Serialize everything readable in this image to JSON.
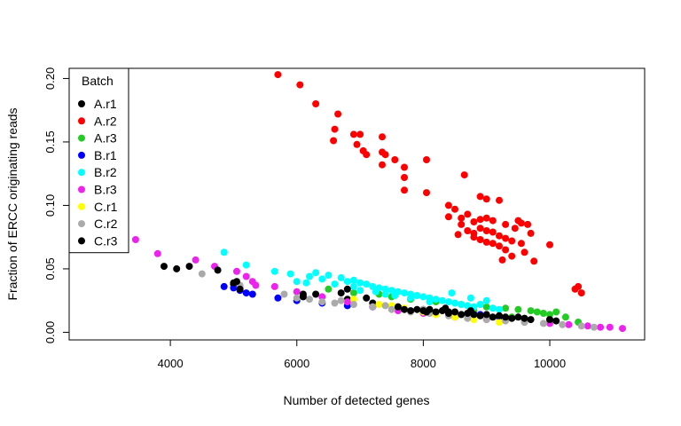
{
  "chart_data": {
    "type": "scatter",
    "xlabel": "Number of detected genes",
    "ylabel": "Fraction of ERCC originating reads",
    "xlim": [
      2400,
      11500
    ],
    "ylim": [
      -0.006,
      0.208
    ],
    "x_ticks": [
      4000,
      6000,
      8000,
      10000
    ],
    "y_ticks": [
      0.0,
      0.05,
      0.1,
      0.15,
      0.2
    ],
    "x_tick_labels": [
      "4000",
      "6000",
      "8000",
      "10000"
    ],
    "y_tick_labels": [
      "0.00",
      "0.05",
      "0.10",
      "0.15",
      "0.20"
    ],
    "grid": false,
    "legend": {
      "title": "Batch",
      "position": "top-left",
      "entries": [
        "A.r1",
        "A.r2",
        "A.r3",
        "B.r1",
        "B.r2",
        "B.r3",
        "C.r1",
        "C.r2",
        "C.r3"
      ]
    },
    "series": [
      {
        "name": "A.r1",
        "color": "#000000",
        "points": [
          [
            5000,
            0.038
          ],
          [
            5100,
            0.034
          ],
          [
            6300,
            0.03
          ],
          [
            6800,
            0.026
          ],
          [
            7200,
            0.023
          ],
          [
            7600,
            0.02
          ],
          [
            8000,
            0.018
          ],
          [
            8400,
            0.016
          ],
          [
            8800,
            0.014
          ],
          [
            9200,
            0.013
          ],
          [
            9600,
            0.011
          ],
          [
            10000,
            0.01
          ]
        ]
      },
      {
        "name": "A.r2",
        "color": "#ff0000",
        "points": [
          [
            5700,
            0.203
          ],
          [
            6050,
            0.195
          ],
          [
            6300,
            0.18
          ],
          [
            6650,
            0.172
          ],
          [
            6600,
            0.16
          ],
          [
            6580,
            0.151
          ],
          [
            6900,
            0.156
          ],
          [
            7000,
            0.156
          ],
          [
            6950,
            0.148
          ],
          [
            7050,
            0.143
          ],
          [
            7100,
            0.14
          ],
          [
            7350,
            0.154
          ],
          [
            7350,
            0.142
          ],
          [
            7400,
            0.14
          ],
          [
            7350,
            0.132
          ],
          [
            7550,
            0.136
          ],
          [
            7700,
            0.13
          ],
          [
            7700,
            0.122
          ],
          [
            7700,
            0.112
          ],
          [
            8050,
            0.136
          ],
          [
            8050,
            0.11
          ],
          [
            8650,
            0.124
          ],
          [
            8900,
            0.107
          ],
          [
            9000,
            0.105
          ],
          [
            9200,
            0.104
          ],
          [
            8400,
            0.1
          ],
          [
            8500,
            0.097
          ],
          [
            8400,
            0.091
          ],
          [
            8600,
            0.09
          ],
          [
            8700,
            0.093
          ],
          [
            8800,
            0.087
          ],
          [
            8900,
            0.089
          ],
          [
            9000,
            0.09
          ],
          [
            9100,
            0.088
          ],
          [
            9300,
            0.085
          ],
          [
            9500,
            0.088
          ],
          [
            9550,
            0.086
          ],
          [
            9650,
            0.085
          ],
          [
            9450,
            0.082
          ],
          [
            9700,
            0.078
          ],
          [
            8600,
            0.085
          ],
          [
            8700,
            0.08
          ],
          [
            8800,
            0.078
          ],
          [
            8900,
            0.082
          ],
          [
            9000,
            0.08
          ],
          [
            9100,
            0.079
          ],
          [
            9200,
            0.076
          ],
          [
            9300,
            0.074
          ],
          [
            9400,
            0.072
          ],
          [
            8800,
            0.075
          ],
          [
            8900,
            0.073
          ],
          [
            9000,
            0.071
          ],
          [
            9100,
            0.07
          ],
          [
            9200,
            0.068
          ],
          [
            9300,
            0.065
          ],
          [
            9400,
            0.06
          ],
          [
            9600,
            0.063
          ],
          [
            9550,
            0.07
          ],
          [
            8550,
            0.077
          ],
          [
            9250,
            0.057
          ],
          [
            9750,
            0.056
          ],
          [
            10000,
            0.069
          ],
          [
            10450,
            0.036
          ],
          [
            10500,
            0.031
          ],
          [
            10400,
            0.034
          ]
        ]
      },
      {
        "name": "A.r3",
        "color": "#22cc22",
        "points": [
          [
            7300,
            0.03
          ],
          [
            7500,
            0.028
          ],
          [
            7800,
            0.026
          ],
          [
            8200,
            0.024
          ],
          [
            8600,
            0.022
          ],
          [
            9000,
            0.02
          ],
          [
            9300,
            0.019
          ],
          [
            9500,
            0.018
          ],
          [
            9700,
            0.017
          ],
          [
            9800,
            0.016
          ],
          [
            9900,
            0.015
          ],
          [
            10000,
            0.014
          ],
          [
            10100,
            0.016
          ],
          [
            10250,
            0.012
          ],
          [
            9600,
            0.01
          ],
          [
            9400,
            0.012
          ],
          [
            10450,
            0.008
          ],
          [
            8800,
            0.017
          ],
          [
            6500,
            0.034
          ],
          [
            6900,
            0.031
          ]
        ]
      },
      {
        "name": "B.r1",
        "color": "#0000ff",
        "points": [
          [
            4850,
            0.036
          ],
          [
            5000,
            0.035
          ],
          [
            5100,
            0.033
          ],
          [
            5200,
            0.031
          ],
          [
            5300,
            0.03
          ],
          [
            5700,
            0.027
          ],
          [
            6000,
            0.025
          ],
          [
            6400,
            0.023
          ],
          [
            6800,
            0.021
          ],
          [
            7200,
            0.02
          ],
          [
            7600,
            0.018
          ],
          [
            8100,
            0.016
          ],
          [
            8400,
            0.015
          ],
          [
            8900,
            0.014
          ],
          [
            9200,
            0.012
          ]
        ]
      },
      {
        "name": "B.r2",
        "color": "#00ffff",
        "points": [
          [
            4850,
            0.063
          ],
          [
            5200,
            0.053
          ],
          [
            5650,
            0.048
          ],
          [
            5900,
            0.046
          ],
          [
            6000,
            0.04
          ],
          [
            6200,
            0.044
          ],
          [
            6300,
            0.047
          ],
          [
            6400,
            0.042
          ],
          [
            6500,
            0.045
          ],
          [
            6700,
            0.043
          ],
          [
            6800,
            0.04
          ],
          [
            6900,
            0.041
          ],
          [
            7000,
            0.039
          ],
          [
            7100,
            0.038
          ],
          [
            7200,
            0.036
          ],
          [
            7300,
            0.035
          ],
          [
            7400,
            0.034
          ],
          [
            7500,
            0.033
          ],
          [
            7600,
            0.032
          ],
          [
            7700,
            0.031
          ],
          [
            7800,
            0.03
          ],
          [
            7900,
            0.029
          ],
          [
            8000,
            0.028
          ],
          [
            8100,
            0.027
          ],
          [
            8200,
            0.026
          ],
          [
            8300,
            0.025
          ],
          [
            8400,
            0.024
          ],
          [
            8500,
            0.023
          ],
          [
            8600,
            0.022
          ],
          [
            8700,
            0.021
          ],
          [
            8800,
            0.02
          ],
          [
            8900,
            0.022
          ],
          [
            9000,
            0.025
          ],
          [
            9100,
            0.019
          ],
          [
            9200,
            0.018
          ],
          [
            6600,
            0.038
          ],
          [
            7000,
            0.033
          ],
          [
            7400,
            0.03
          ],
          [
            7800,
            0.027
          ],
          [
            8100,
            0.024
          ],
          [
            6900,
            0.036
          ],
          [
            7250,
            0.032
          ],
          [
            7550,
            0.029
          ],
          [
            6150,
            0.039
          ],
          [
            8450,
            0.031
          ],
          [
            8750,
            0.027
          ]
        ]
      },
      {
        "name": "B.r3",
        "color": "#ee22ee",
        "points": [
          [
            3450,
            0.073
          ],
          [
            3800,
            0.062
          ],
          [
            4400,
            0.057
          ],
          [
            4700,
            0.052
          ],
          [
            5050,
            0.048
          ],
          [
            5200,
            0.044
          ],
          [
            5300,
            0.04
          ],
          [
            5350,
            0.037
          ],
          [
            5100,
            0.035
          ],
          [
            5650,
            0.036
          ],
          [
            6000,
            0.032
          ],
          [
            6400,
            0.028
          ],
          [
            6800,
            0.024
          ],
          [
            7200,
            0.02
          ],
          [
            7600,
            0.017
          ],
          [
            8000,
            0.015
          ],
          [
            8500,
            0.012
          ],
          [
            9000,
            0.01
          ],
          [
            9600,
            0.008
          ],
          [
            10000,
            0.007
          ],
          [
            10300,
            0.006
          ],
          [
            10600,
            0.005
          ],
          [
            10800,
            0.004
          ],
          [
            10950,
            0.004
          ],
          [
            11150,
            0.003
          ]
        ]
      },
      {
        "name": "C.r1",
        "color": "#ffff00",
        "points": [
          [
            6900,
            0.026
          ],
          [
            7300,
            0.022
          ],
          [
            7700,
            0.019
          ],
          [
            8000,
            0.016
          ],
          [
            8500,
            0.012
          ],
          [
            8800,
            0.01
          ],
          [
            9200,
            0.008
          ],
          [
            7500,
            0.021
          ],
          [
            8200,
            0.014
          ]
        ]
      },
      {
        "name": "C.r2",
        "color": "#aaaaaa",
        "points": [
          [
            4500,
            0.046
          ],
          [
            5100,
            0.037
          ],
          [
            5800,
            0.03
          ],
          [
            6000,
            0.027
          ],
          [
            6200,
            0.026
          ],
          [
            6400,
            0.024
          ],
          [
            6600,
            0.023
          ],
          [
            6900,
            0.022
          ],
          [
            7200,
            0.02
          ],
          [
            7500,
            0.018
          ],
          [
            7800,
            0.016
          ],
          [
            8100,
            0.015
          ],
          [
            8400,
            0.013
          ],
          [
            8700,
            0.011
          ],
          [
            9000,
            0.01
          ],
          [
            9300,
            0.009
          ],
          [
            9600,
            0.008
          ],
          [
            9900,
            0.007
          ],
          [
            10200,
            0.006
          ],
          [
            10500,
            0.005
          ],
          [
            10700,
            0.004
          ],
          [
            6100,
            0.029
          ],
          [
            6700,
            0.025
          ],
          [
            7400,
            0.021
          ],
          [
            8000,
            0.018
          ],
          [
            8600,
            0.014
          ]
        ]
      },
      {
        "name": "C.r3",
        "color": "#000000",
        "points": [
          [
            3900,
            0.052
          ],
          [
            4100,
            0.05
          ],
          [
            4300,
            0.052
          ],
          [
            4750,
            0.049
          ],
          [
            5000,
            0.039
          ],
          [
            5050,
            0.04
          ],
          [
            5100,
            0.034
          ],
          [
            6100,
            0.028
          ],
          [
            6100,
            0.03
          ],
          [
            6800,
            0.034
          ],
          [
            6700,
            0.031
          ],
          [
            7100,
            0.027
          ],
          [
            7600,
            0.02
          ],
          [
            7700,
            0.018
          ],
          [
            7800,
            0.017
          ],
          [
            7900,
            0.018
          ],
          [
            8000,
            0.017
          ],
          [
            8050,
            0.016
          ],
          [
            8100,
            0.018
          ],
          [
            8200,
            0.016
          ],
          [
            8300,
            0.017
          ],
          [
            8400,
            0.015
          ],
          [
            8500,
            0.016
          ],
          [
            8600,
            0.014
          ],
          [
            8700,
            0.015
          ],
          [
            8800,
            0.014
          ],
          [
            8900,
            0.013
          ],
          [
            9000,
            0.014
          ],
          [
            9100,
            0.012
          ],
          [
            9200,
            0.013
          ],
          [
            9300,
            0.012
          ],
          [
            9400,
            0.011
          ],
          [
            9500,
            0.012
          ],
          [
            9600,
            0.011
          ],
          [
            9700,
            0.01
          ],
          [
            10000,
            0.01
          ],
          [
            10100,
            0.009
          ],
          [
            8350,
            0.019
          ],
          [
            8750,
            0.017
          ]
        ]
      }
    ]
  }
}
